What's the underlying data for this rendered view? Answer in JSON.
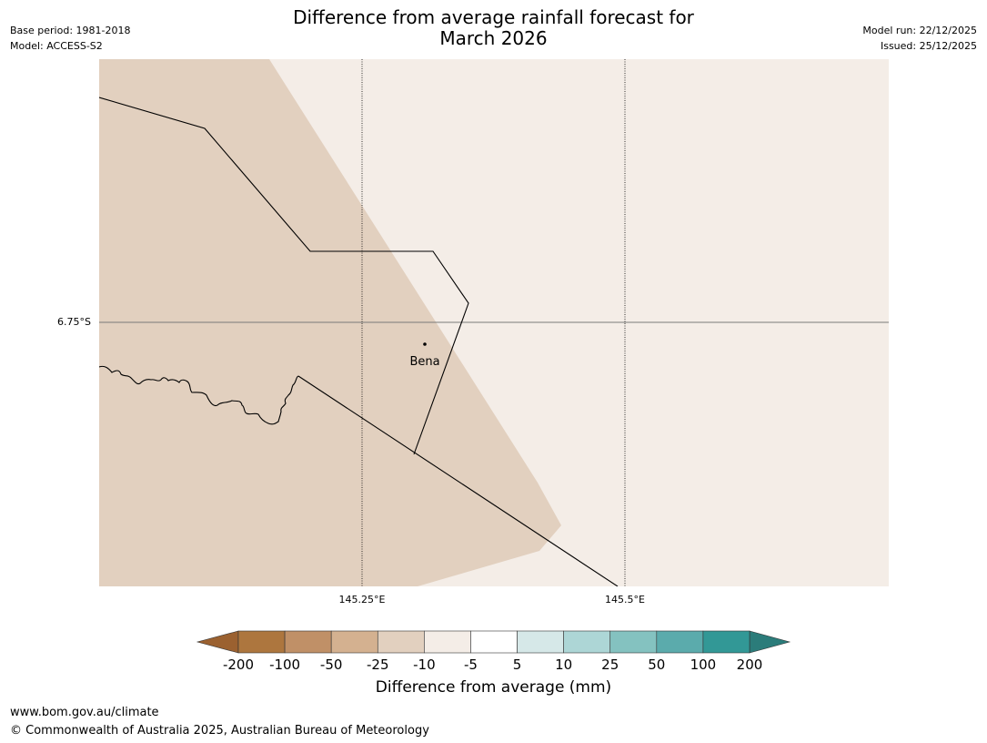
{
  "header": {
    "title_line1": "Difference from average rainfall forecast for",
    "title_line2": "March 2026",
    "base_period": "Base period: 1981-2018",
    "model": "Model: ACCESS-S2",
    "model_run": "Model run: 22/12/2025",
    "issued": "Issued: 25/12/2025"
  },
  "map": {
    "lat_labels": [
      "6.75°S"
    ],
    "lon_labels": [
      "145.25°E",
      "145.5°E"
    ],
    "places": [
      {
        "name": "Bena",
        "lon": 145.31,
        "lat": -6.77
      }
    ],
    "fill_colors": {
      "drier": "#e2d0bf",
      "near_average": "#f4ede7"
    },
    "border_color": "#000000",
    "gridline_color": "#000000"
  },
  "colorbar": {
    "label": "Difference from average (mm)",
    "ticks": [
      "-200",
      "-100",
      "-50",
      "-25",
      "-10",
      "-5",
      "5",
      "10",
      "25",
      "50",
      "100",
      "200"
    ],
    "colors": [
      "#ad763e",
      "#c09067",
      "#d4b190",
      "#e2d0bf",
      "#f4ede7",
      "#ffffff",
      "#d6e8e8",
      "#add6d6",
      "#84c2c0",
      "#5babac",
      "#329896"
    ],
    "extend_low_color": "#9b6130",
    "extend_high_color": "#2b7c7a"
  },
  "footer": {
    "url": "www.bom.gov.au/climate",
    "copyright": "© Commonwealth of Australia 2025, Australian Bureau of Meteorology"
  }
}
